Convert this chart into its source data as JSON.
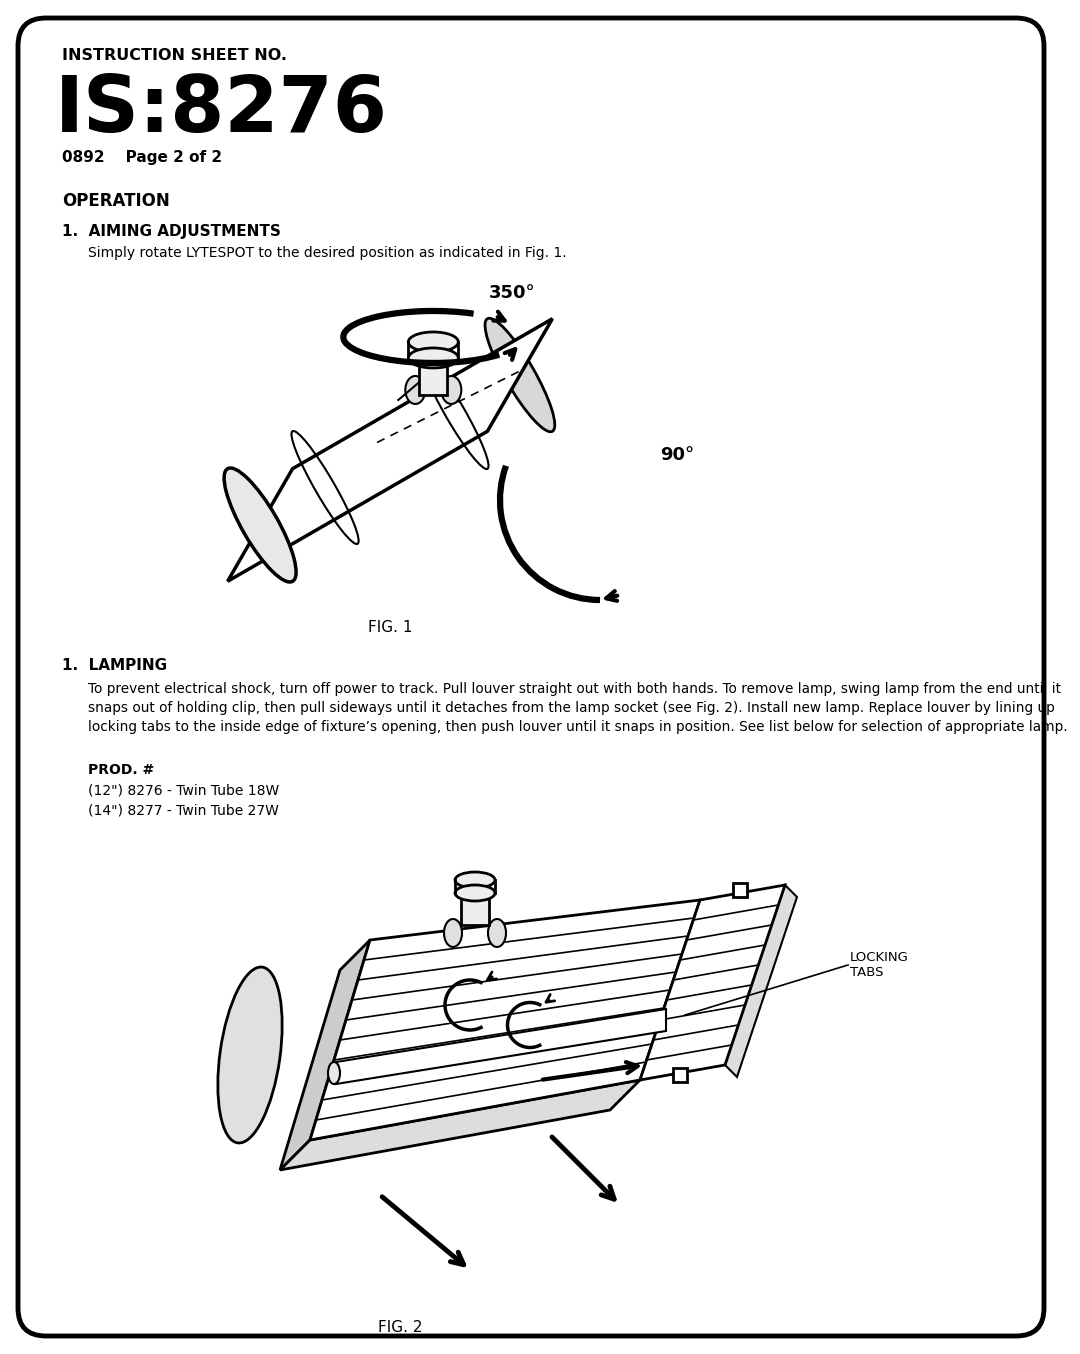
{
  "title_label": "INSTRUCTION SHEET NO.",
  "title_main": "IS:8276",
  "subtitle": "0892    Page 2 of 2",
  "section1_header": "OPERATION",
  "item1_header": "1.  AIMING ADJUSTMENTS",
  "item1_text": "Simply rotate LYTESPOT to the desired position as indicated in Fig. 1.",
  "fig1_label": "FIG. 1",
  "item2_header": "1.  LAMPING",
  "item2_text": "To prevent electrical shock, turn off power to track. Pull louver straight out with both hands. To remove lamp, swing lamp from the end until it snaps out of holding clip, then pull sideways until it detaches from the lamp socket (see Fig. 2). Install new lamp. Replace louver by lining up locking tabs to the inside edge of fixture’s opening, then push louver until it snaps in position. See list below for selection of appropriate lamp.",
  "prod_label": "PROD. #",
  "prod_line1": "(12\") 8276 - Twin Tube 18W",
  "prod_line2": "(14\") 8277 - Twin Tube 27W",
  "fig2_label": "FIG. 2",
  "locking_tabs_label": "LOCKING\nTABS",
  "angle_350": "350°",
  "angle_90": "90°",
  "bg_color": "#ffffff",
  "border_color": "#000000",
  "text_color": "#000000"
}
